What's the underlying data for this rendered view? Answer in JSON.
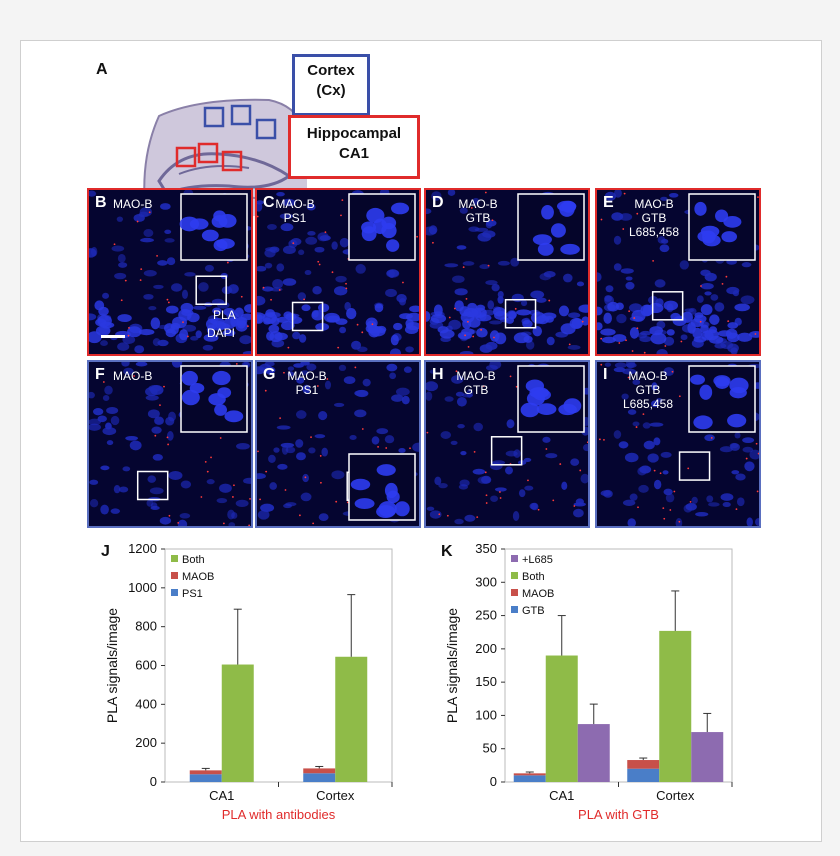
{
  "panel_a": {
    "letter": "A",
    "cortex_label": [
      "Cortex",
      "(Cx)"
    ],
    "ca1_label": [
      "Hippocampal",
      "CA1"
    ],
    "cortex_color": "#3a4fa8",
    "ca1_color": "#e02b2b"
  },
  "row1": [
    {
      "letter": "B",
      "lines": [
        "MAO-B"
      ],
      "border": "#e02b2b"
    },
    {
      "letter": "C",
      "lines": [
        "MAO-B",
        "PS1"
      ],
      "border": "#e02b2b"
    },
    {
      "letter": "D",
      "lines": [
        "MAO-B",
        "GTB"
      ],
      "border": "#e02b2b"
    },
    {
      "letter": "E",
      "lines": [
        "MAO-B",
        "GTB",
        "L685,458"
      ],
      "border": "#e02b2b"
    }
  ],
  "row2": [
    {
      "letter": "F",
      "lines": [
        "MAO-B"
      ],
      "border": "#5a6fc0"
    },
    {
      "letter": "G",
      "lines": [
        "MAO-B",
        "PS1"
      ],
      "border": "#5a6fc0"
    },
    {
      "letter": "H",
      "lines": [
        "MAO-B",
        "GTB"
      ],
      "border": "#5a6fc0"
    },
    {
      "letter": "I",
      "lines": [
        "MAO-B",
        "GTB",
        "L685,458"
      ],
      "border": "#5a6fc0"
    }
  ],
  "stain_legend": {
    "pla": "PLA",
    "dapi": "DAPI",
    "pla_color": "#e02b2b",
    "dapi_color": "#3a4fd8"
  },
  "chart_data": [
    {
      "type": "bar",
      "stacked": true,
      "letter": "J",
      "ylabel": "PLA signals/image",
      "xlabel": "PLA with antibodies",
      "ylim": [
        0,
        1200
      ],
      "yticks": [
        0,
        200,
        400,
        600,
        800,
        1000,
        1200
      ],
      "categories": [
        "CA1",
        "Cortex"
      ],
      "legend": [
        "Both",
        "MAOB",
        "PS1"
      ],
      "series": [
        {
          "name": "PS1",
          "color": "#4a7ec8",
          "values": [
            40,
            45
          ],
          "errors": [
            0,
            0
          ]
        },
        {
          "name": "MAOB",
          "color": "#c8504a",
          "values": [
            20,
            25
          ],
          "errors": [
            10,
            10
          ]
        },
        {
          "name": "Both",
          "color": "#8fbb48",
          "values": [
            605,
            645
          ],
          "errors": [
            285,
            320
          ]
        }
      ]
    },
    {
      "type": "bar",
      "stacked": false,
      "letter": "K",
      "ylabel": "PLA signals/image",
      "xlabel": "PLA with GTB",
      "ylim": [
        0,
        350
      ],
      "yticks": [
        0,
        50,
        100,
        150,
        200,
        250,
        300,
        350
      ],
      "categories": [
        "CA1",
        "Cortex"
      ],
      "legend": [
        "+L685",
        "Both",
        "MAOB",
        "GTB"
      ],
      "series": [
        {
          "name": "GTB",
          "color": "#4a7ec8",
          "values": [
            10,
            20
          ],
          "errors": [
            0,
            0
          ]
        },
        {
          "name": "MAOB",
          "color": "#c8504a",
          "values": [
            3,
            13
          ],
          "errors": [
            2,
            3
          ]
        },
        {
          "name": "Both",
          "color": "#8fbb48",
          "values": [
            190,
            227
          ],
          "errors": [
            60,
            60
          ]
        },
        {
          "name": "+L685",
          "color": "#8d6bb0",
          "values": [
            87,
            75
          ],
          "errors": [
            30,
            28
          ]
        }
      ]
    }
  ]
}
